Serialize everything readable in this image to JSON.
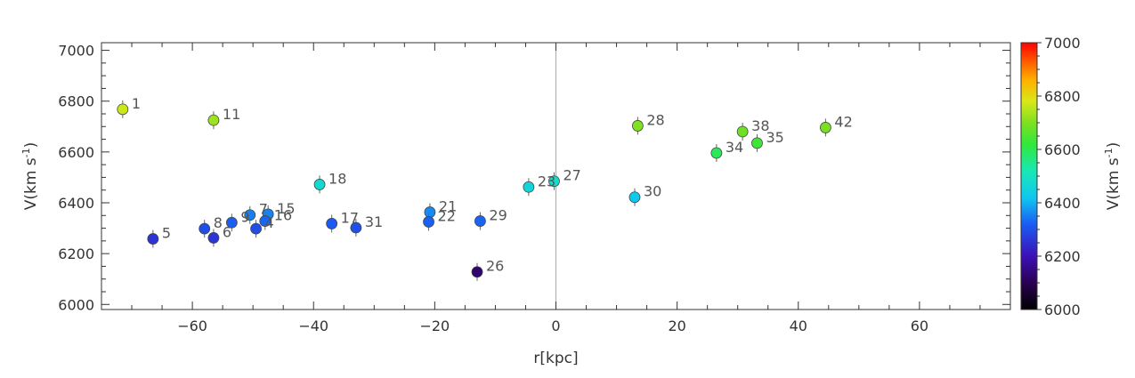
{
  "chart_data": {
    "type": "scatter",
    "xlabel": "r[kpc]",
    "ylabel": "V(km s",
    "ylabel_sup": "-1",
    "ylabel_close": ")",
    "xlim": [
      -75,
      75
    ],
    "ylim": [
      5980,
      7030
    ],
    "x_ticks": [
      -60,
      -40,
      -20,
      0,
      20,
      40,
      60
    ],
    "x_tick_labels": [
      "−60",
      "−40",
      "−20",
      "0",
      "20",
      "40",
      "60"
    ],
    "y_ticks": [
      6000,
      6200,
      6400,
      6600,
      6800,
      7000
    ],
    "y_tick_labels": [
      "6000",
      "6200",
      "6400",
      "6600",
      "6800",
      "7000"
    ],
    "zero_line_x": 0,
    "colorbar": {
      "min": 6000,
      "max": 7000,
      "ticks": [
        6000,
        6200,
        6400,
        6600,
        6800,
        7000
      ],
      "tick_labels": [
        "6000",
        "6200",
        "6400",
        "6600",
        "6800",
        "7000"
      ],
      "label": "V(km s",
      "label_sup": "-1",
      "label_close": ")",
      "colormap": "rainbow"
    },
    "points": [
      {
        "label": "1",
        "x": -71.5,
        "y": 6768
      },
      {
        "label": "11",
        "x": -56.5,
        "y": 6725
      },
      {
        "label": "5",
        "x": -66.5,
        "y": 6258
      },
      {
        "label": "8",
        "x": -58.0,
        "y": 6298
      },
      {
        "label": "6",
        "x": -56.5,
        "y": 6262
      },
      {
        "label": "9",
        "x": -53.5,
        "y": 6322
      },
      {
        "label": "7",
        "x": -50.5,
        "y": 6352
      },
      {
        "label": "15",
        "x": -47.5,
        "y": 6355
      },
      {
        "label": "4",
        "x": -49.5,
        "y": 6298
      },
      {
        "label": "16",
        "x": -48.0,
        "y": 6328
      },
      {
        "label": "18",
        "x": -39.0,
        "y": 6472
      },
      {
        "label": "17",
        "x": -37.0,
        "y": 6318
      },
      {
        "label": "31",
        "x": -33.0,
        "y": 6302
      },
      {
        "label": "21",
        "x": -20.8,
        "y": 6363
      },
      {
        "label": "22",
        "x": -21.0,
        "y": 6325
      },
      {
        "label": "29",
        "x": -12.5,
        "y": 6328
      },
      {
        "label": "26",
        "x": -13.0,
        "y": 6128
      },
      {
        "label": "23",
        "x": -4.5,
        "y": 6462
      },
      {
        "label": "27",
        "x": -0.3,
        "y": 6485
      },
      {
        "label": "28",
        "x": 13.5,
        "y": 6703
      },
      {
        "label": "30",
        "x": 13.0,
        "y": 6422
      },
      {
        "label": "34",
        "x": 26.5,
        "y": 6596
      },
      {
        "label": "38",
        "x": 30.8,
        "y": 6680
      },
      {
        "label": "35",
        "x": 33.2,
        "y": 6635
      },
      {
        "label": "42",
        "x": 44.5,
        "y": 6696
      }
    ]
  }
}
